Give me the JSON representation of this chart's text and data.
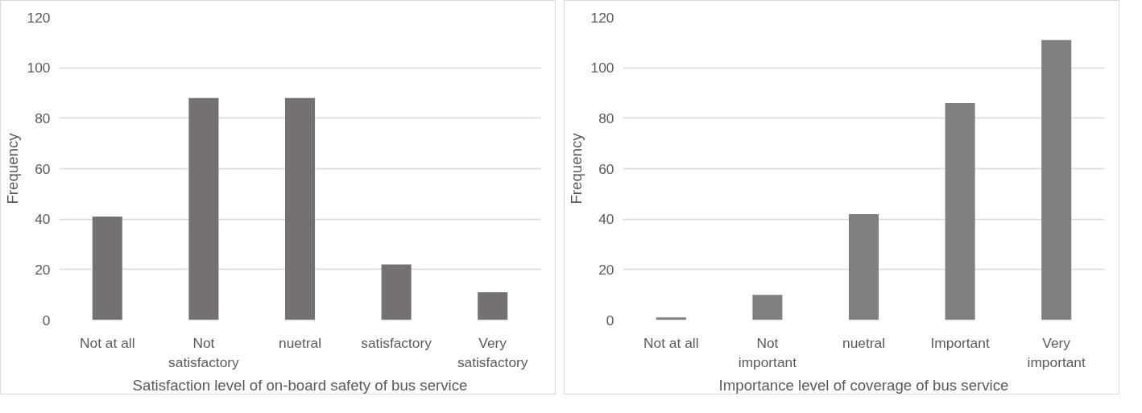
{
  "chart_data": [
    {
      "type": "bar",
      "xlabel": "Satisfaction level of on-board safety of bus service",
      "ylabel": "Frequency",
      "categories": [
        "Not at all",
        "Not satisfactory",
        "nuetral",
        "satisfactory",
        "Very satisfactory"
      ],
      "values": [
        41,
        88,
        88,
        22,
        11
      ],
      "color": "#767171",
      "ylim": [
        0,
        120
      ],
      "yticks": [
        0,
        20,
        40,
        60,
        80,
        100,
        120
      ],
      "grid": "y"
    },
    {
      "type": "bar",
      "xlabel": "Importance level of coverage of bus service",
      "ylabel": "Frequency",
      "categories": [
        "Not at all",
        "Not important",
        "nuetral",
        "Important",
        "Very important"
      ],
      "values": [
        1,
        10,
        42,
        86,
        111
      ],
      "color": "#808080",
      "ylim": [
        0,
        120
      ],
      "yticks": [
        0,
        20,
        40,
        60,
        80,
        100,
        120
      ],
      "grid": "y"
    }
  ]
}
